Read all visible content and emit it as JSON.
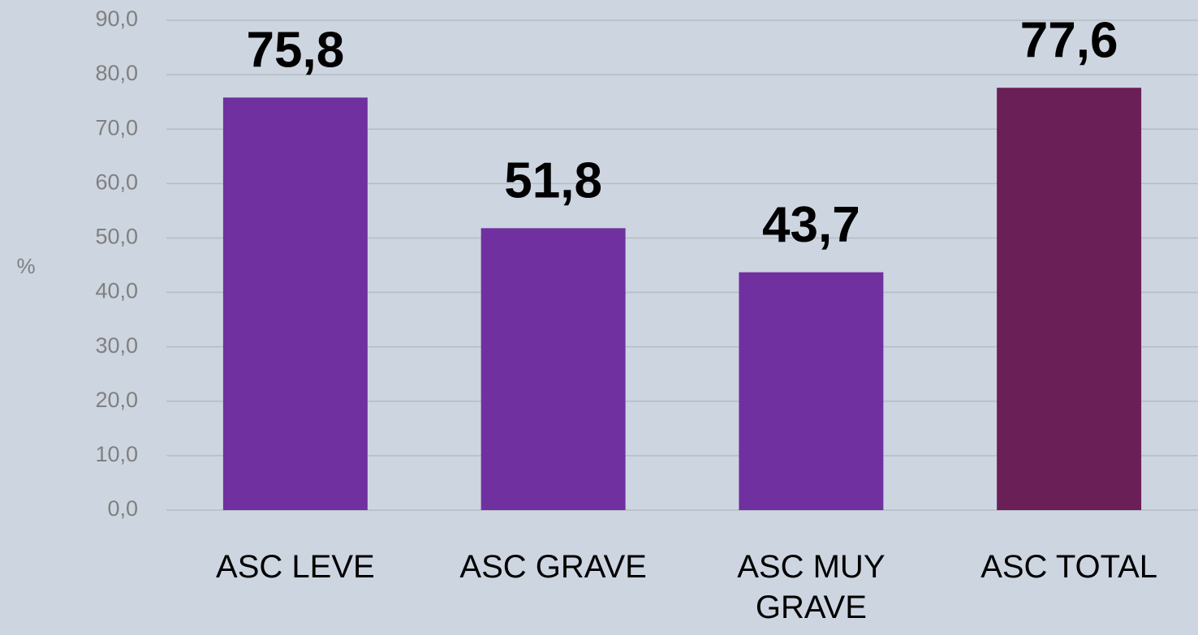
{
  "chart_data": {
    "type": "bar",
    "y_label": "%",
    "categories": [
      "ASC LEVE",
      "ASC GRAVE",
      "ASC MUY GRAVE",
      "ASC TOTAL"
    ],
    "values": [
      75.8,
      51.8,
      43.7,
      77.6
    ],
    "value_labels": [
      "75,8",
      "51,8",
      "43,7",
      "77,6"
    ],
    "colors": [
      "#7030a0",
      "#7030a0",
      "#7030a0",
      "#6b1f57"
    ],
    "ylim": [
      0,
      90
    ],
    "yticks": [
      {
        "value": 0,
        "label": "0,0"
      },
      {
        "value": 10,
        "label": "10,0"
      },
      {
        "value": 20,
        "label": "20,0"
      },
      {
        "value": 30,
        "label": "30,0"
      },
      {
        "value": 40,
        "label": "40,0"
      },
      {
        "value": 50,
        "label": "50,0"
      },
      {
        "value": 60,
        "label": "60,0"
      },
      {
        "value": 70,
        "label": "70,0"
      },
      {
        "value": 80,
        "label": "80,0"
      },
      {
        "value": 90,
        "label": "90,0"
      }
    ],
    "grid": true
  }
}
